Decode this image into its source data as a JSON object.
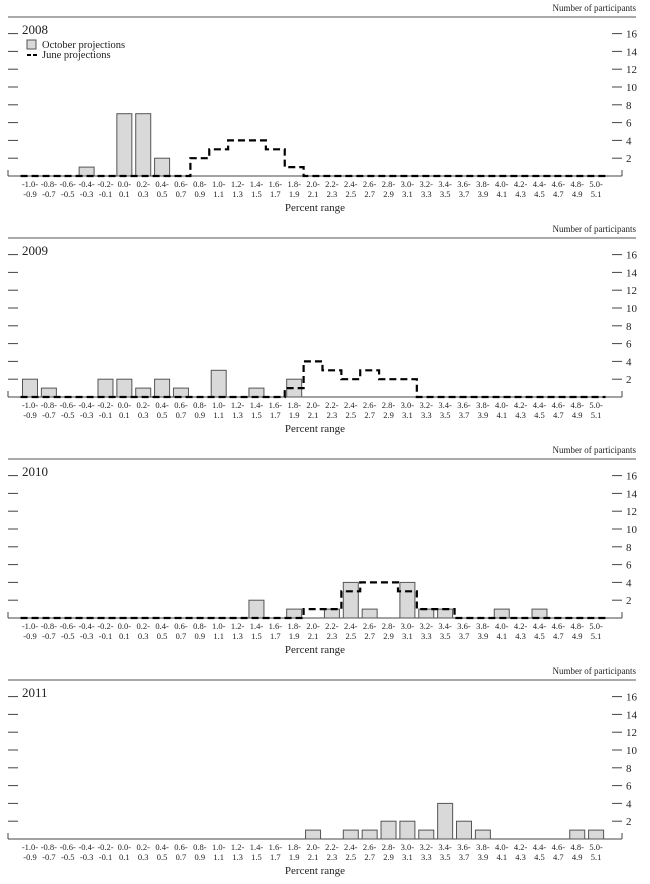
{
  "chart_data": [
    {
      "type": "bar",
      "title": "2008",
      "ylabel": "Number of participants",
      "xlabel": "Percent range",
      "ylim": [
        0,
        17
      ],
      "yticks": [
        2,
        4,
        6,
        8,
        10,
        12,
        14,
        16
      ],
      "legend": {
        "placement": "top-left",
        "entries": [
          "October projections",
          "June projections"
        ]
      },
      "categories": [
        "-1.0--0.9",
        "-0.8--0.7",
        "-0.6--0.5",
        "-0.4--0.3",
        "-0.2--0.1",
        "0.0-0.1",
        "0.2-0.3",
        "0.4-0.5",
        "0.6-0.7",
        "0.8-0.9",
        "1.0-1.1",
        "1.2-1.3",
        "1.4-1.5",
        "1.6-1.7",
        "1.8-1.9",
        "2.0-2.1",
        "2.2-2.3",
        "2.4-2.5",
        "2.6-2.7",
        "2.8-2.9",
        "3.0-3.1",
        "3.2-3.3",
        "3.4-3.5",
        "3.6-3.7",
        "3.8-3.9",
        "4.0-4.1",
        "4.2-4.3",
        "4.4-4.5",
        "4.6-4.7",
        "4.8-4.9",
        "5.0-5.1"
      ],
      "series": [
        {
          "name": "October projections",
          "style": "bar",
          "color": "#d9d9d9",
          "values": [
            0,
            0,
            0,
            1,
            0,
            7,
            7,
            2,
            0,
            0,
            0,
            0,
            0,
            0,
            0,
            0,
            0,
            0,
            0,
            0,
            0,
            0,
            0,
            0,
            0,
            0,
            0,
            0,
            0,
            0,
            0
          ]
        },
        {
          "name": "June projections",
          "style": "dashed-step",
          "color": "#000000",
          "values": [
            0,
            0,
            0,
            0,
            0,
            0,
            0,
            0,
            0,
            2,
            3,
            4,
            4,
            3,
            1,
            0,
            0,
            0,
            0,
            0,
            0,
            0,
            0,
            0,
            0,
            0,
            0,
            0,
            0,
            0,
            0
          ]
        }
      ]
    },
    {
      "type": "bar",
      "title": "2009",
      "ylabel": "Number of participants",
      "xlabel": "Percent range",
      "ylim": [
        0,
        17
      ],
      "yticks": [
        2,
        4,
        6,
        8,
        10,
        12,
        14,
        16
      ],
      "categories": [
        "-1.0--0.9",
        "-0.8--0.7",
        "-0.6--0.5",
        "-0.4--0.3",
        "-0.2--0.1",
        "0.0-0.1",
        "0.2-0.3",
        "0.4-0.5",
        "0.6-0.7",
        "0.8-0.9",
        "1.0-1.1",
        "1.2-1.3",
        "1.4-1.5",
        "1.6-1.7",
        "1.8-1.9",
        "2.0-2.1",
        "2.2-2.3",
        "2.4-2.5",
        "2.6-2.7",
        "2.8-2.9",
        "3.0-3.1",
        "3.2-3.3",
        "3.4-3.5",
        "3.6-3.7",
        "3.8-3.9",
        "4.0-4.1",
        "4.2-4.3",
        "4.4-4.5",
        "4.6-4.7",
        "4.8-4.9",
        "5.0-5.1"
      ],
      "series": [
        {
          "name": "October projections",
          "style": "bar",
          "color": "#d9d9d9",
          "values": [
            2,
            1,
            0,
            0,
            2,
            2,
            1,
            2,
            1,
            0,
            3,
            0,
            1,
            0,
            2,
            0,
            0,
            0,
            0,
            0,
            0,
            0,
            0,
            0,
            0,
            0,
            0,
            0,
            0,
            0,
            0
          ]
        },
        {
          "name": "June projections",
          "style": "dashed-step",
          "color": "#000000",
          "values": [
            0,
            0,
            0,
            0,
            0,
            0,
            0,
            0,
            0,
            0,
            0,
            0,
            0,
            0,
            1,
            4,
            3,
            2,
            3,
            2,
            2,
            0,
            0,
            0,
            0,
            0,
            0,
            0,
            0,
            0,
            0
          ]
        }
      ]
    },
    {
      "type": "bar",
      "title": "2010",
      "ylabel": "Number of participants",
      "xlabel": "Percent range",
      "ylim": [
        0,
        17
      ],
      "yticks": [
        2,
        4,
        6,
        8,
        10,
        12,
        14,
        16
      ],
      "categories": [
        "-1.0--0.9",
        "-0.8--0.7",
        "-0.6--0.5",
        "-0.4--0.3",
        "-0.2--0.1",
        "0.0-0.1",
        "0.2-0.3",
        "0.4-0.5",
        "0.6-0.7",
        "0.8-0.9",
        "1.0-1.1",
        "1.2-1.3",
        "1.4-1.5",
        "1.6-1.7",
        "1.8-1.9",
        "2.0-2.1",
        "2.2-2.3",
        "2.4-2.5",
        "2.6-2.7",
        "2.8-2.9",
        "3.0-3.1",
        "3.2-3.3",
        "3.4-3.5",
        "3.6-3.7",
        "3.8-3.9",
        "4.0-4.1",
        "4.2-4.3",
        "4.4-4.5",
        "4.6-4.7",
        "4.8-4.9",
        "5.0-5.1"
      ],
      "series": [
        {
          "name": "October projections",
          "style": "bar",
          "color": "#d9d9d9",
          "values": [
            0,
            0,
            0,
            0,
            0,
            0,
            0,
            0,
            0,
            0,
            0,
            0,
            2,
            0,
            1,
            0,
            1,
            4,
            1,
            0,
            4,
            1,
            1,
            0,
            0,
            1,
            0,
            1,
            0,
            0,
            0
          ]
        },
        {
          "name": "June projections",
          "style": "dashed-step",
          "color": "#000000",
          "values": [
            0,
            0,
            0,
            0,
            0,
            0,
            0,
            0,
            0,
            0,
            0,
            0,
            0,
            0,
            0,
            1,
            1,
            3,
            4,
            4,
            3,
            1,
            1,
            0,
            0,
            0,
            0,
            0,
            0,
            0,
            0
          ]
        }
      ]
    },
    {
      "type": "bar",
      "title": "2011",
      "ylabel": "Number of participants",
      "xlabel": "Percent range",
      "ylim": [
        0,
        17
      ],
      "yticks": [
        2,
        4,
        6,
        8,
        10,
        12,
        14,
        16
      ],
      "categories": [
        "-1.0--0.9",
        "-0.8--0.7",
        "-0.6--0.5",
        "-0.4--0.3",
        "-0.2--0.1",
        "0.0-0.1",
        "0.2-0.3",
        "0.4-0.5",
        "0.6-0.7",
        "0.8-0.9",
        "1.0-1.1",
        "1.2-1.3",
        "1.4-1.5",
        "1.6-1.7",
        "1.8-1.9",
        "2.0-2.1",
        "2.2-2.3",
        "2.4-2.5",
        "2.6-2.7",
        "2.8-2.9",
        "3.0-3.1",
        "3.2-3.3",
        "3.4-3.5",
        "3.6-3.7",
        "3.8-3.9",
        "4.0-4.1",
        "4.2-4.3",
        "4.4-4.5",
        "4.6-4.7",
        "4.8-4.9",
        "5.0-5.1"
      ],
      "series": [
        {
          "name": "October projections",
          "style": "bar",
          "color": "#d9d9d9",
          "values": [
            0,
            0,
            0,
            0,
            0,
            0,
            0,
            0,
            0,
            0,
            0,
            0,
            0,
            0,
            0,
            1,
            0,
            1,
            1,
            2,
            2,
            1,
            4,
            2,
            1,
            0,
            0,
            0,
            0,
            1,
            1
          ]
        }
      ]
    }
  ]
}
